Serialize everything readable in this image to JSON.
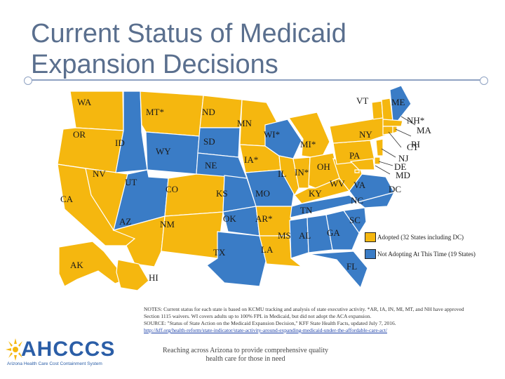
{
  "title": {
    "line1": "Current Status of Medicaid",
    "line2": "Expansion Decisions"
  },
  "colors": {
    "adopted": "#f5b70f",
    "not_adopting": "#3a7cc6",
    "border": "#ffffff",
    "title": "#5a6f8e"
  },
  "states": {
    "WA": {
      "label": "WA",
      "status": "adopted"
    },
    "OR": {
      "label": "OR",
      "status": "adopted"
    },
    "CA": {
      "label": "CA",
      "status": "adopted"
    },
    "NV": {
      "label": "NV",
      "status": "adopted"
    },
    "ID": {
      "label": "ID",
      "status": "not_adopting"
    },
    "MT": {
      "label": "MT*",
      "status": "adopted"
    },
    "WY": {
      "label": "WY",
      "status": "not_adopting"
    },
    "UT": {
      "label": "UT",
      "status": "not_adopting"
    },
    "AZ": {
      "label": "AZ",
      "status": "adopted"
    },
    "CO": {
      "label": "CO",
      "status": "adopted"
    },
    "NM": {
      "label": "NM",
      "status": "adopted"
    },
    "ND": {
      "label": "ND",
      "status": "adopted"
    },
    "SD": {
      "label": "SD",
      "status": "not_adopting"
    },
    "NE": {
      "label": "NE",
      "status": "not_adopting"
    },
    "KS": {
      "label": "KS",
      "status": "not_adopting"
    },
    "OK": {
      "label": "OK",
      "status": "not_adopting"
    },
    "TX": {
      "label": "TX",
      "status": "not_adopting"
    },
    "MN": {
      "label": "MN",
      "status": "adopted"
    },
    "IA": {
      "label": "IA*",
      "status": "adopted"
    },
    "MO": {
      "label": "MO",
      "status": "not_adopting"
    },
    "AR": {
      "label": "AR*",
      "status": "adopted"
    },
    "LA": {
      "label": "LA",
      "status": "adopted"
    },
    "WI": {
      "label": "WI*",
      "status": "not_adopting"
    },
    "IL": {
      "label": "IL",
      "status": "adopted"
    },
    "MI": {
      "label": "MI*",
      "status": "adopted"
    },
    "IN": {
      "label": "IN*",
      "status": "adopted"
    },
    "OH": {
      "label": "OH",
      "status": "adopted"
    },
    "KY": {
      "label": "KY",
      "status": "adopted"
    },
    "TN": {
      "label": "TN",
      "status": "not_adopting"
    },
    "MS": {
      "label": "MS",
      "status": "not_adopting"
    },
    "AL": {
      "label": "AL",
      "status": "not_adopting"
    },
    "GA": {
      "label": "GA",
      "status": "not_adopting"
    },
    "FL": {
      "label": "FL",
      "status": "not_adopting"
    },
    "SC": {
      "label": "SC",
      "status": "not_adopting"
    },
    "NC": {
      "label": "NC",
      "status": "not_adopting"
    },
    "VA": {
      "label": "VA",
      "status": "not_adopting"
    },
    "WV": {
      "label": "WV",
      "status": "adopted"
    },
    "PA": {
      "label": "PA",
      "status": "adopted"
    },
    "NY": {
      "label": "NY",
      "status": "adopted"
    },
    "VT": {
      "label": "VT",
      "status": "adopted"
    },
    "NH": {
      "label": "NH*",
      "status": "adopted"
    },
    "ME": {
      "label": "ME",
      "status": "not_adopting"
    },
    "MA": {
      "label": "MA",
      "status": "adopted"
    },
    "RI": {
      "label": "RI",
      "status": "adopted"
    },
    "CT": {
      "label": "CT",
      "status": "adopted"
    },
    "NJ": {
      "label": "NJ",
      "status": "adopted"
    },
    "DE": {
      "label": "DE",
      "status": "adopted"
    },
    "MD": {
      "label": "MD",
      "status": "adopted"
    },
    "DC": {
      "label": "DC",
      "status": "adopted"
    },
    "AK": {
      "label": "AK",
      "status": "adopted"
    },
    "HI": {
      "label": "HI",
      "status": "adopted"
    }
  },
  "legend": {
    "adopted": "Adopted (32 States including DC)",
    "not_adopting": "Not Adopting At This Time (19 States)"
  },
  "notes": {
    "line1": "NOTES: Current status for each state is based on KCMU tracking and analysis of state executive activity. *AR, IA, IN, MI, MT, and NH have approved",
    "line2": "Section 1115 waivers. WI covers adults up to 100% FPL in Medicaid, but did not adopt the ACA expansion.",
    "line3": "SOURCE: \"Status of State Action on the Medicaid Expansion Decision,\" KFF State Health Facts, updated July 7, 2016.",
    "url": "http://kff.org/health-reform/state-indicator/state-activity-around-expanding-medicaid-under-the-affordable-care-act/"
  },
  "logo": {
    "name": "AHCCCS",
    "subtitle": "Arizona Health Care Cost Containment System"
  },
  "tagline": "Reaching across Arizona to provide comprehensive quality health care for those in need"
}
